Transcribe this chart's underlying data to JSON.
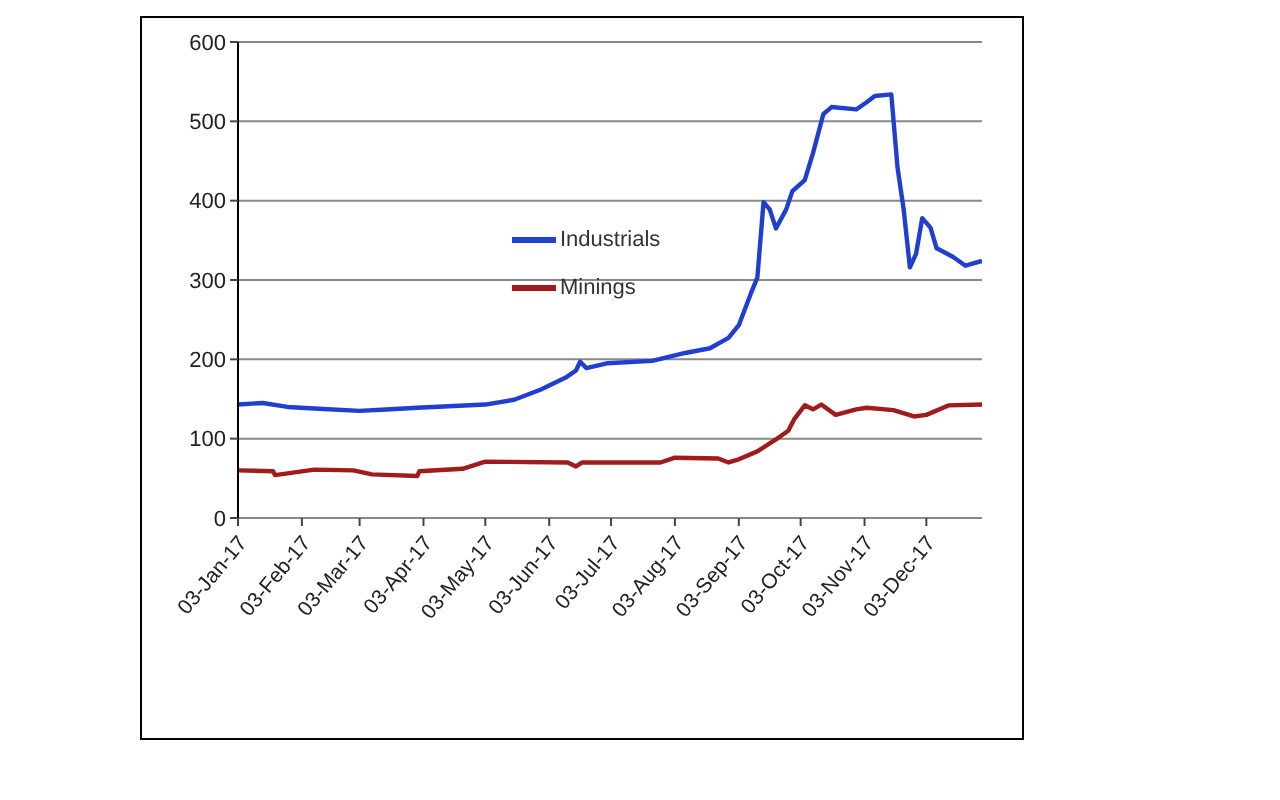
{
  "chart_data": {
    "type": "line",
    "xlim": [
      "2017-01-03",
      "2017-12-30"
    ],
    "ylim": [
      0,
      600
    ],
    "yticks": [
      0,
      100,
      200,
      300,
      400,
      500,
      600
    ],
    "xticks": [
      {
        "value": "2017-01-03",
        "label": "03-Jan-17"
      },
      {
        "value": "2017-02-03",
        "label": "03-Feb-17"
      },
      {
        "value": "2017-03-03",
        "label": "03-Mar-17"
      },
      {
        "value": "2017-04-03",
        "label": "03-Apr-17"
      },
      {
        "value": "2017-05-03",
        "label": "03-May-17"
      },
      {
        "value": "2017-06-03",
        "label": "03-Jun-17"
      },
      {
        "value": "2017-07-03",
        "label": "03-Jul-17"
      },
      {
        "value": "2017-08-03",
        "label": "03-Aug-17"
      },
      {
        "value": "2017-09-03",
        "label": "03-Sep-17"
      },
      {
        "value": "2017-10-03",
        "label": "03-Oct-17"
      },
      {
        "value": "2017-11-03",
        "label": "03-Nov-17"
      },
      {
        "value": "2017-12-03",
        "label": "03-Dec-17"
      }
    ],
    "grid": "y",
    "legend": "top left",
    "marker": "none",
    "line_style": "solid",
    "series": [
      {
        "name": "Industrials",
        "color": "#1f3fd0",
        "x": [
          "2017-01-03",
          "2017-01-15",
          "2017-01-27",
          "2017-02-09",
          "2017-03-03",
          "2017-03-18",
          "2017-03-31",
          "2017-05-03",
          "2017-05-17",
          "2017-05-30",
          "2017-06-11",
          "2017-06-16",
          "2017-06-18",
          "2017-06-21",
          "2017-07-01",
          "2017-07-23",
          "2017-08-08",
          "2017-08-20",
          "2017-08-29",
          "2017-09-03",
          "2017-09-09",
          "2017-09-12",
          "2017-09-15",
          "2017-09-18",
          "2017-09-21",
          "2017-09-26",
          "2017-09-29",
          "2017-10-05",
          "2017-10-09",
          "2017-10-14",
          "2017-10-18",
          "2017-10-30",
          "2017-11-04",
          "2017-11-08",
          "2017-11-16",
          "2017-11-19",
          "2017-11-22",
          "2017-11-25",
          "2017-11-28",
          "2017-12-01",
          "2017-12-05",
          "2017-12-08",
          "2017-12-16",
          "2017-12-22",
          "2017-12-30"
        ],
        "values": [
          143,
          145,
          140,
          138,
          135,
          137,
          139,
          143,
          149,
          162,
          177,
          186,
          197,
          189,
          195,
          198,
          208,
          214,
          227,
          243,
          284,
          303,
          398,
          389,
          365,
          389,
          412,
          426,
          460,
          509,
          518,
          515,
          524,
          532,
          534,
          442,
          389,
          316,
          333,
          378,
          366,
          340,
          329,
          318,
          324
        ]
      },
      {
        "name": "Minings",
        "color": "#a01c1c",
        "x": [
          "2017-01-03",
          "2017-01-20",
          "2017-01-21",
          "2017-02-09",
          "2017-02-28",
          "2017-03-09",
          "2017-03-31",
          "2017-04-01",
          "2017-04-22",
          "2017-05-03",
          "2017-06-12",
          "2017-06-16",
          "2017-06-19",
          "2017-07-27",
          "2017-08-03",
          "2017-08-24",
          "2017-08-29",
          "2017-09-03",
          "2017-09-12",
          "2017-09-21",
          "2017-09-27",
          "2017-09-30",
          "2017-10-05",
          "2017-10-09",
          "2017-10-13",
          "2017-10-20",
          "2017-10-30",
          "2017-11-04",
          "2017-11-17",
          "2017-11-27",
          "2017-12-03",
          "2017-12-14",
          "2017-12-30"
        ],
        "values": [
          60,
          59,
          54,
          61,
          60,
          55,
          53,
          59,
          62,
          71,
          70,
          65,
          70,
          70,
          76,
          75,
          70,
          74,
          84,
          99,
          110,
          125,
          142,
          137,
          143,
          130,
          137,
          139,
          136,
          128,
          130,
          142,
          143
        ]
      }
    ]
  }
}
